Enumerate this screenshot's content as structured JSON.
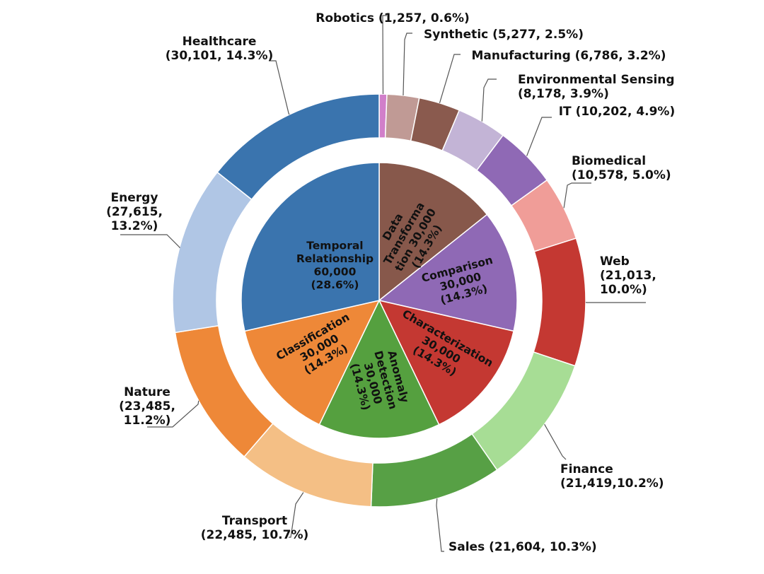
{
  "chart_data": {
    "type": "pie",
    "title": "",
    "outer_ring": [
      {
        "name": "Robotics",
        "value": 1257,
        "label": "Robotics (1,257, 0.6%)",
        "color": "#d17fca"
      },
      {
        "name": "Synthetic",
        "value": 5277,
        "label": "Synthetic (5,277, 2.5%)",
        "color": "#c09a95"
      },
      {
        "name": "Manufacturing",
        "value": 6786,
        "label": "Manufacturing (6,786, 3.2%)",
        "color": "#8a5a4e"
      },
      {
        "name": "Environmental Sensing",
        "value": 8178,
        "label": "Environmental Sensing|(8,178, 3.9%)",
        "color": "#c3b4d6"
      },
      {
        "name": "IT",
        "value": 10202,
        "label": "IT (10,202, 4.9%)",
        "color": "#8f69b5"
      },
      {
        "name": "Biomedical",
        "value": 10578,
        "label": "Biomedical|(10,578, 5.0%)",
        "color": "#f09d98"
      },
      {
        "name": "Web",
        "value": 21013,
        "label": "Web|(21,013,|10.0%)",
        "color": "#c43832"
      },
      {
        "name": "Finance",
        "value": 21419,
        "label": "Finance|(21,419,10.2%)",
        "color": "#a7dd95"
      },
      {
        "name": "Sales",
        "value": 21604,
        "label": "Sales (21,604, 10.3%)",
        "color": "#57a045"
      },
      {
        "name": "Transport",
        "value": 22485,
        "label": "Transport|(22,485, 10.7%)",
        "color": "#f4bf85"
      },
      {
        "name": "Nature",
        "value": 23485,
        "label": "Nature|(23,485,|11.2%)",
        "color": "#ee8838"
      },
      {
        "name": "Energy",
        "value": 27615,
        "label": "Energy|(27,615,|13.2%)",
        "color": "#b0c6e5"
      },
      {
        "name": "Healthcare",
        "value": 30101,
        "label": "Healthcare|(30,101, 14.3%)",
        "color": "#3a74ae"
      }
    ],
    "inner_pie": [
      {
        "name": "Data Transformation",
        "value": 30000,
        "label": "Data|Transforma|tion 30,000|(14.3%)",
        "color": "#87584b"
      },
      {
        "name": "Comparison",
        "value": 30000,
        "label": "Comparison|30,000|(14.3%)",
        "color": "#8f69b5"
      },
      {
        "name": "Characterization",
        "value": 30000,
        "label": "Characterization|30,000|(14.3%)",
        "color": "#c43832"
      },
      {
        "name": "Anomaly Detection",
        "value": 30000,
        "label": "Anomaly|Detection|30,000|(14.3%)",
        "color": "#55a03f"
      },
      {
        "name": "Classification",
        "value": 30000,
        "label": "Classification|30,000|(14.3%)",
        "color": "#ee8838"
      },
      {
        "name": "Temporal Relationship",
        "value": 60000,
        "label": "Temporal|Relationship|60,000|(28.6%)",
        "color": "#3a74ae"
      }
    ]
  }
}
